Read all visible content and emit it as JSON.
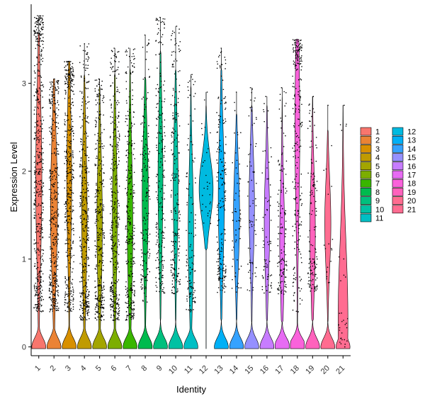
{
  "chart_data": {
    "type": "violin",
    "xlabel": "Identity",
    "ylabel": "Expression Level",
    "ylim": [
      -0.1,
      3.9
    ],
    "yticks": [
      0,
      1,
      2,
      3
    ],
    "grid": false,
    "legend_position": "right",
    "categories": [
      "1",
      "2",
      "3",
      "4",
      "5",
      "6",
      "7",
      "8",
      "9",
      "10",
      "11",
      "12",
      "13",
      "14",
      "15",
      "16",
      "17",
      "18",
      "19",
      "20",
      "21"
    ],
    "colors": [
      "#F8766D",
      "#EB8335",
      "#D89000",
      "#C09B00",
      "#A3A500",
      "#7CAE00",
      "#39B600",
      "#00BB4E",
      "#00BF7D",
      "#00C1A3",
      "#00BFC4",
      "#00BAE0",
      "#00B0F6",
      "#35A2FF",
      "#9590FF",
      "#C77CFF",
      "#E76BF3",
      "#FA62DB",
      "#FF62BC",
      "#FF6C90",
      "#FF6C91"
    ],
    "series": [
      {
        "name": "1",
        "max": 3.77,
        "zero_frac": 0.08,
        "body_min": 0.4,
        "body_max": 3.3,
        "body_mode": 1.9,
        "n_points": 500
      },
      {
        "name": "2",
        "max": 3.05,
        "zero_frac": 0.07,
        "body_min": 0.4,
        "body_max": 2.85,
        "body_mode": 1.6,
        "n_points": 380
      },
      {
        "name": "3",
        "max": 3.25,
        "zero_frac": 0.1,
        "body_min": 0.4,
        "body_max": 3.0,
        "body_mode": 1.9,
        "n_points": 420
      },
      {
        "name": "4",
        "max": 3.45,
        "zero_frac": 0.09,
        "body_min": 0.3,
        "body_max": 2.85,
        "body_mode": 1.5,
        "n_points": 380
      },
      {
        "name": "5",
        "max": 3.05,
        "zero_frac": 0.09,
        "body_min": 0.3,
        "body_max": 2.7,
        "body_mode": 1.4,
        "n_points": 340
      },
      {
        "name": "6",
        "max": 3.4,
        "zero_frac": 0.1,
        "body_min": 0.3,
        "body_max": 2.85,
        "body_mode": 1.5,
        "n_points": 360
      },
      {
        "name": "7",
        "max": 3.4,
        "zero_frac": 0.09,
        "body_min": 0.3,
        "body_max": 2.9,
        "body_mode": 1.4,
        "n_points": 320
      },
      {
        "name": "8",
        "max": 3.55,
        "zero_frac": 0.08,
        "body_min": 0.5,
        "body_max": 2.8,
        "body_mode": 1.7,
        "n_points": 160
      },
      {
        "name": "9",
        "max": 3.75,
        "zero_frac": 0.1,
        "body_min": 0.6,
        "body_max": 3.1,
        "body_mode": 1.9,
        "n_points": 220
      },
      {
        "name": "10",
        "max": 3.65,
        "zero_frac": 0.1,
        "body_min": 0.6,
        "body_max": 2.9,
        "body_mode": 1.8,
        "n_points": 220
      },
      {
        "name": "11",
        "max": 3.1,
        "zero_frac": 0.09,
        "body_min": 0.4,
        "body_max": 2.7,
        "body_mode": 1.3,
        "n_points": 120
      },
      {
        "name": "12",
        "max": 2.9,
        "zero_frac": 0.0,
        "body_min": 1.4,
        "body_max": 2.5,
        "body_mode": 1.8,
        "n_points": 30
      },
      {
        "name": "13",
        "max": 3.4,
        "zero_frac": 0.08,
        "body_min": 0.6,
        "body_max": 2.9,
        "body_mode": 1.7,
        "n_points": 200
      },
      {
        "name": "14",
        "max": 2.9,
        "zero_frac": 0.08,
        "body_min": 0.6,
        "body_max": 2.4,
        "body_mode": 1.5,
        "n_points": 60
      },
      {
        "name": "15",
        "max": 2.95,
        "zero_frac": 0.09,
        "body_min": 0.6,
        "body_max": 2.5,
        "body_mode": 1.6,
        "n_points": 70
      },
      {
        "name": "16",
        "max": 2.85,
        "zero_frac": 0.09,
        "body_min": 0.6,
        "body_max": 2.5,
        "body_mode": 1.4,
        "n_points": 70
      },
      {
        "name": "17",
        "max": 2.95,
        "zero_frac": 0.11,
        "body_min": 0.6,
        "body_max": 2.6,
        "body_mode": 1.2,
        "n_points": 130
      },
      {
        "name": "18",
        "max": 3.5,
        "zero_frac": 0.12,
        "body_min": 0.4,
        "body_max": 3.5,
        "body_mode": 2.5,
        "n_points": 240
      },
      {
        "name": "19",
        "max": 2.85,
        "zero_frac": 0.09,
        "body_min": 0.6,
        "body_max": 2.6,
        "body_mode": 1.3,
        "n_points": 130
      },
      {
        "name": "20",
        "max": 2.75,
        "zero_frac": 0.08,
        "body_min": 0.6,
        "body_max": 2.2,
        "body_mode": 1.4,
        "n_points": 18
      },
      {
        "name": "21",
        "max": 2.75,
        "zero_frac": 0.05,
        "body_min": 0.0,
        "body_max": 2.75,
        "body_mode": 0.3,
        "n_points": 30
      }
    ]
  }
}
